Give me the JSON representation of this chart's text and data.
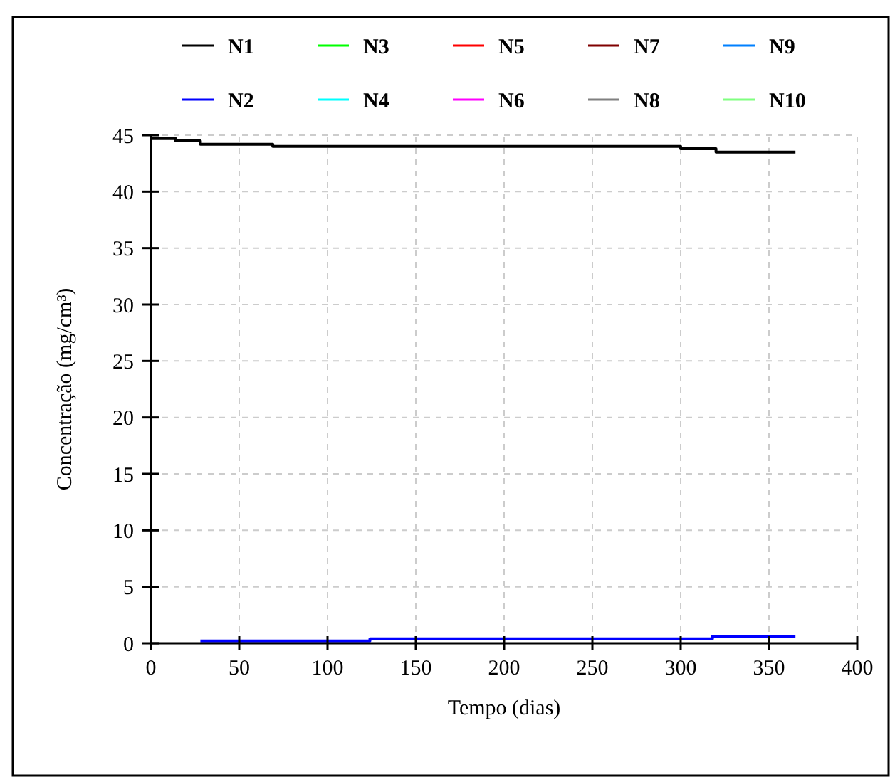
{
  "chart_data": {
    "type": "step",
    "xlabel": "Tempo (dias)",
    "ylabel": "Concentração (mg/cm³)",
    "xlim": [
      0,
      400
    ],
    "xticks": [
      0,
      50,
      100,
      150,
      200,
      250,
      300,
      350,
      400
    ],
    "ylim": [
      0,
      45
    ],
    "yticks": [
      0,
      5,
      10,
      15,
      20,
      25,
      30,
      35,
      40,
      45
    ],
    "grid": true,
    "legend": "top",
    "series": [
      {
        "name": "N1",
        "color": "#000000",
        "x": [
          0,
          14,
          28,
          69,
          300,
          320,
          365
        ],
        "values": [
          44.7,
          44.5,
          44.2,
          44.0,
          43.8,
          43.5,
          43.5
        ]
      },
      {
        "name": "N2",
        "color": "#0000ff",
        "x": [
          28,
          124,
          318,
          365
        ],
        "values": [
          0.2,
          0.4,
          0.6,
          0.6
        ]
      },
      {
        "name": "N3",
        "color": "#00ff00"
      },
      {
        "name": "N4",
        "color": "#00ffff"
      },
      {
        "name": "N5",
        "color": "#ff0000"
      },
      {
        "name": "N6",
        "color": "#ff00ff"
      },
      {
        "name": "N7",
        "color": "#800000"
      },
      {
        "name": "N8",
        "color": "#808080"
      },
      {
        "name": "N9",
        "color": "#0080ff"
      },
      {
        "name": "N10",
        "color": "#80ff80"
      }
    ]
  }
}
